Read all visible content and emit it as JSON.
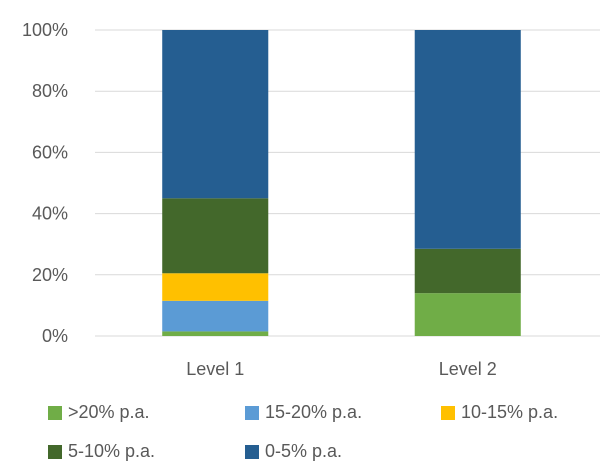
{
  "chart_data": {
    "type": "bar",
    "stacked": true,
    "categories": [
      "Level 1",
      "Level 2"
    ],
    "series": [
      {
        "name": ">20% p.a.",
        "color": "#70AD47",
        "values": [
          1.5,
          14
        ]
      },
      {
        "name": "15-20% p.a.",
        "color": "#5B9BD5",
        "values": [
          10,
          0
        ]
      },
      {
        "name": "10-15% p.a.",
        "color": "#FFC000",
        "values": [
          9,
          0
        ]
      },
      {
        "name": "5-10% p.a.",
        "color": "#43682B",
        "values": [
          24.5,
          14.5
        ]
      },
      {
        "name": "0-5% p.a.",
        "color": "#255E91",
        "values": [
          55,
          71.5
        ]
      }
    ],
    "y_ticks": [
      "0%",
      "20%",
      "40%",
      "60%",
      "80%",
      "100%"
    ],
    "ylim": [
      0,
      100
    ],
    "legend_position": "bottom",
    "grid": true
  }
}
